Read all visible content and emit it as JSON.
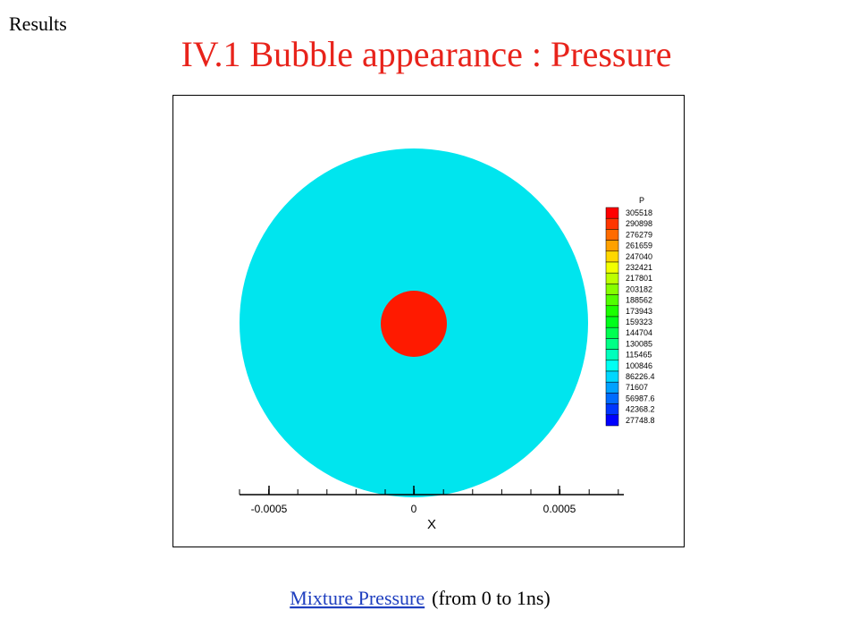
{
  "header": {
    "section": "Results",
    "title": "IV.1 Bubble appearance : Pressure"
  },
  "figure": {
    "legend": {
      "title": "P",
      "levels": [
        "305518",
        "290898",
        "276279",
        "261659",
        "247040",
        "232421",
        "217801",
        "203182",
        "188562",
        "173943",
        "159323",
        "144704",
        "130085",
        "115465",
        "100846",
        "86226.4",
        "71607",
        "56987.6",
        "42368.2",
        "27748.8"
      ]
    },
    "x_axis": {
      "label": "X",
      "ticks": [
        "-0.0005",
        "0",
        "0.0005"
      ]
    }
  },
  "caption": {
    "link": "Mixture Pressure",
    "text": "(from 0 to 1ns)"
  }
}
